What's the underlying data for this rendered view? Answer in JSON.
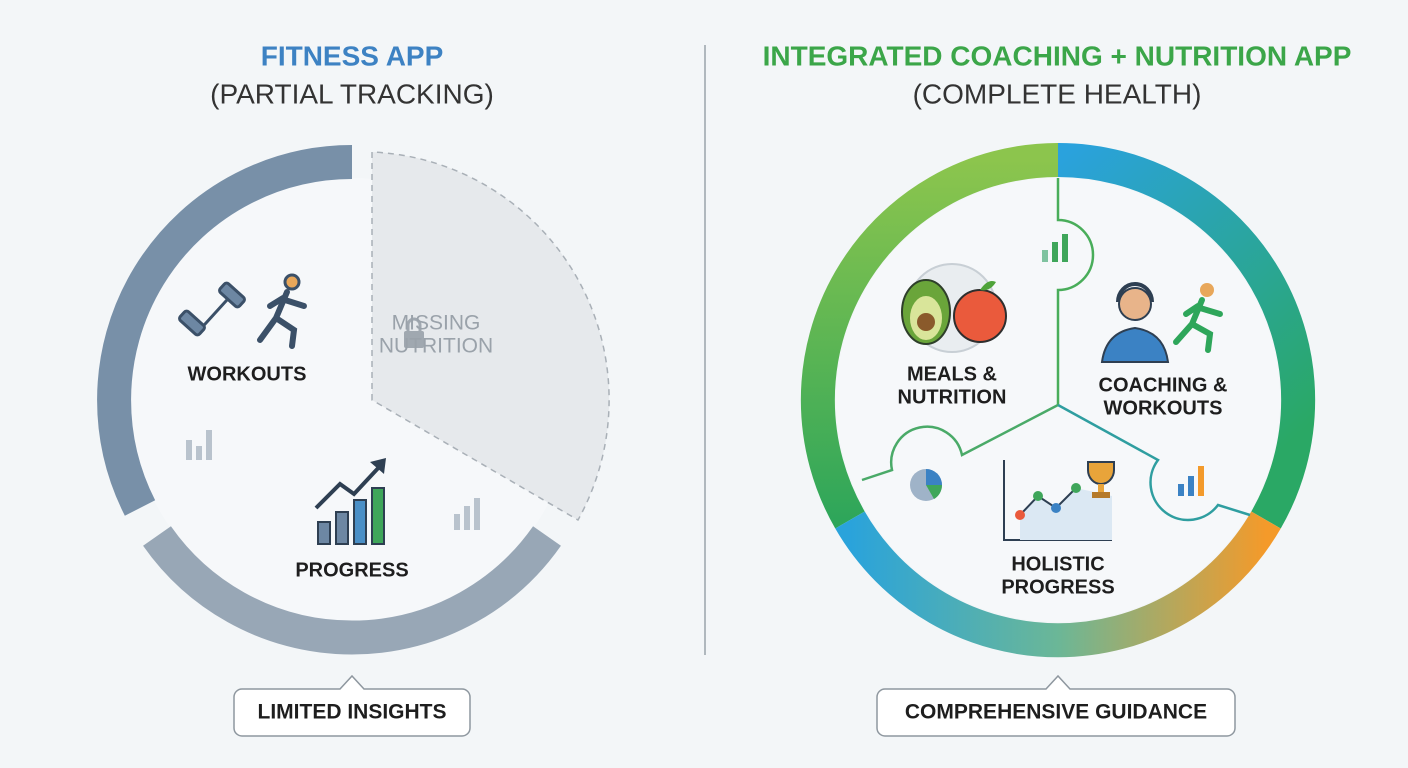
{
  "left": {
    "title": "FITNESS APP",
    "subtitle": "(PARTIAL TRACKING)",
    "workouts": "WORKOUTS",
    "progress": "PROGRESS",
    "missing": [
      "MISSING",
      "NUTRITION"
    ],
    "footer": "LIMITED INSIGHTS"
  },
  "right": {
    "title": "INTEGRATED COACHING + NUTRITION APP",
    "subtitle": "(COMPLETE HEALTH)",
    "meals": [
      "MEALS &",
      "NUTRITION"
    ],
    "coaching": [
      "COACHING &",
      "WORKOUTS"
    ],
    "progress": [
      "HOLISTIC",
      "PROGRESS"
    ],
    "footer": "COMPREHENSIVE GUIDANCE"
  }
}
